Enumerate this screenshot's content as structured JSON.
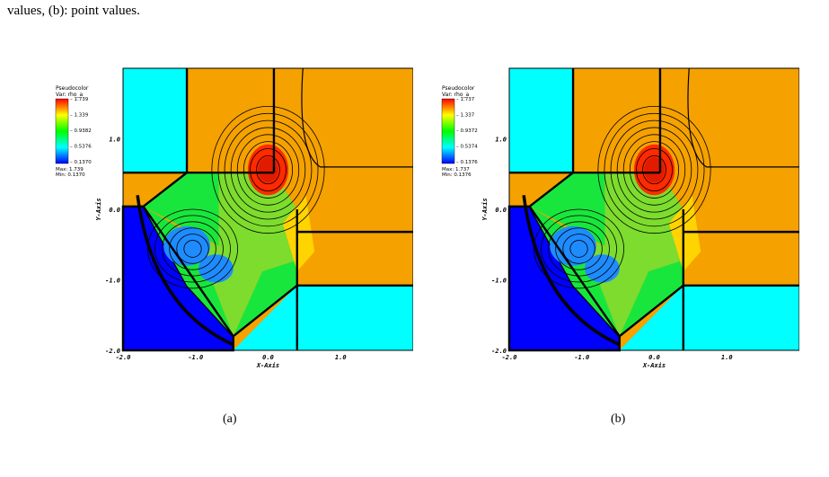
{
  "caption": "values, (b): point values.",
  "panels": [
    {
      "id": "a",
      "sub_label": "(a)",
      "legend": {
        "title": "Pseudocolor",
        "var": "Var: rho_a",
        "ticks": [
          "1.739",
          "1.339",
          "0.9382",
          "0.5376",
          "0.1370"
        ],
        "max": "Max: 1.739",
        "min": "Min: 0.1370"
      },
      "x_axis_label": "X-Axis",
      "y_axis_label": "Y-Axis",
      "x_ticks": [
        "-2.0",
        "-1.0",
        "0.0",
        "1.0"
      ],
      "y_ticks": [
        "1.0",
        "0.0",
        "-1.0",
        "-2.0"
      ],
      "colors": {
        "high": "#ff2a00",
        "orange": "#f5a100",
        "cyan": "#00ffff",
        "green": "#19e63c",
        "lightgreen": "#7ddc2e",
        "blue": "#0000ff",
        "lightblue": "#1e8cff",
        "yellow": "#ffd400"
      }
    },
    {
      "id": "b",
      "sub_label": "(b)",
      "legend": {
        "title": "Pseudocolor",
        "var": "Var: rho_a",
        "ticks": [
          "1.737",
          "1.337",
          "0.9372",
          "0.5374",
          "0.1376"
        ],
        "max": "Max: 1.737",
        "min": "Min: 0.1376"
      },
      "x_axis_label": "X-Axis",
      "y_axis_label": "Y-Axis",
      "x_ticks": [
        "-2.0",
        "-1.0",
        "0.0",
        "1.0"
      ],
      "y_ticks": [
        "1.0",
        "0.0",
        "-1.0",
        "-2.0"
      ],
      "colors": {
        "high": "#ff2a00",
        "orange": "#f5a100",
        "cyan": "#00ffff",
        "green": "#19e63c",
        "lightgreen": "#7ddc2e",
        "blue": "#0000ff",
        "lightblue": "#1e8cff",
        "yellow": "#ffd400"
      }
    }
  ]
}
